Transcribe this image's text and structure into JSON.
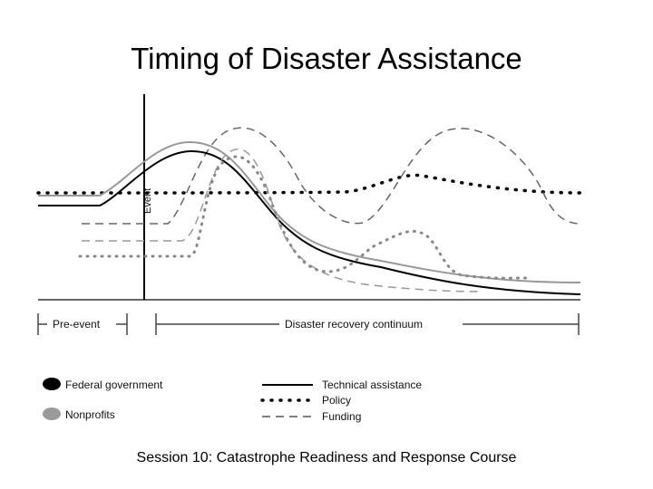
{
  "title": "Timing of Disaster Assistance",
  "footer": "Session 10: Catastrophe Readiness and Response Course",
  "event_label": "Event",
  "timeline": {
    "pre_event": "Pre-event",
    "recovery": "Disaster recovery continuum"
  },
  "legend": {
    "actors": [
      {
        "label": "Federal government",
        "color": "#000000"
      },
      {
        "label": "Nonprofits",
        "color": "#9a9a9a"
      }
    ],
    "assistance_types": [
      {
        "label": "Technical assistance",
        "line_style": "solid"
      },
      {
        "label": "Policy",
        "line_style": "dotted"
      },
      {
        "label": "Funding",
        "line_style": "dashed"
      }
    ]
  }
}
